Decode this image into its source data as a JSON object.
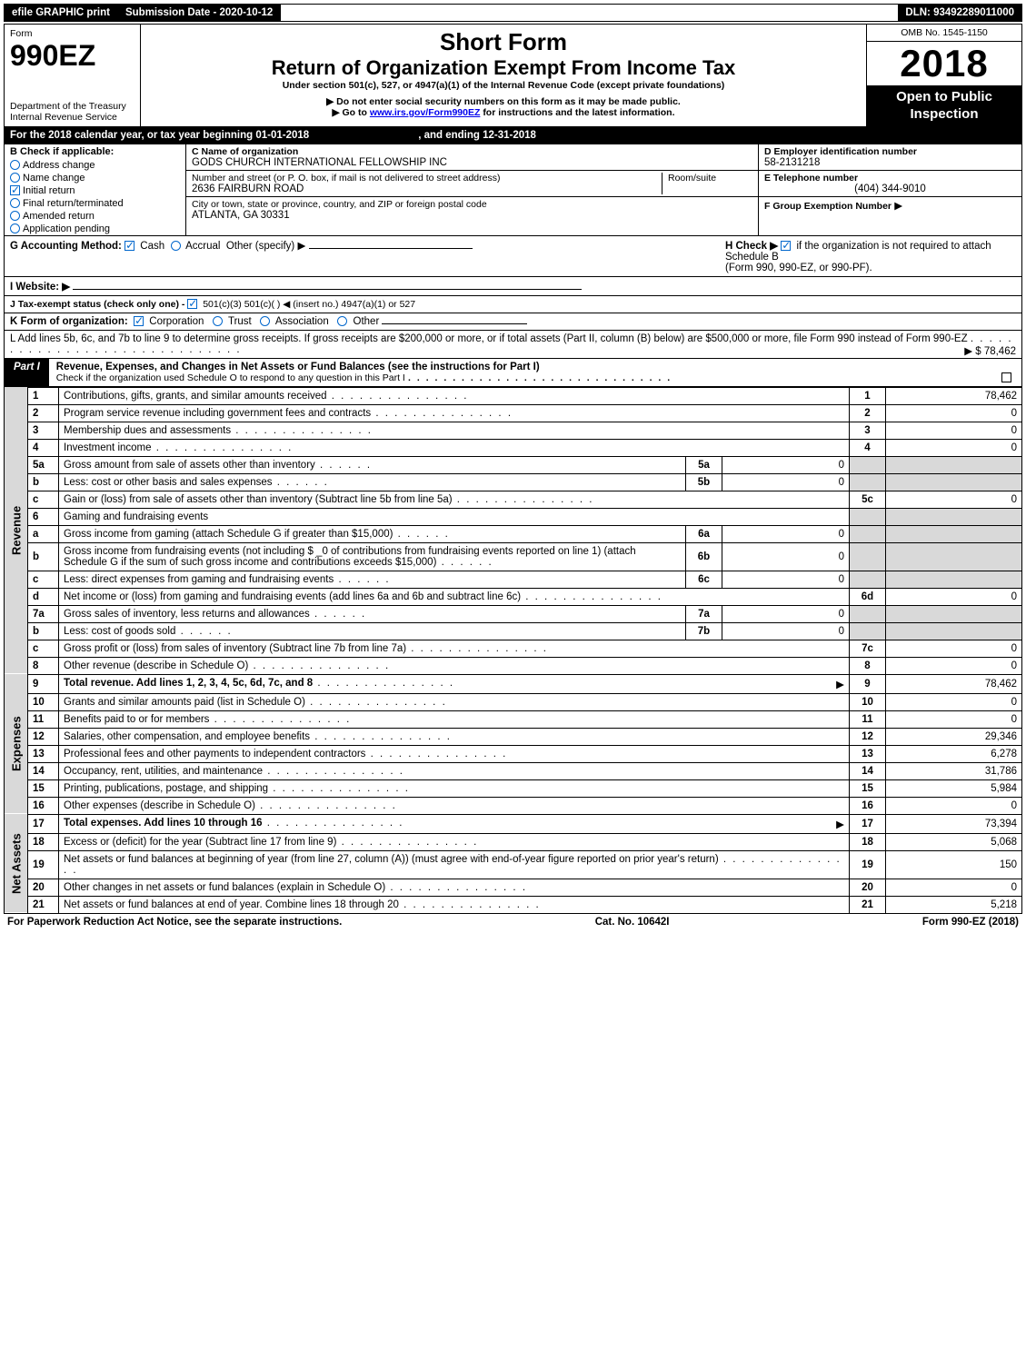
{
  "topbar": {
    "efile": "efile GRAPHIC print",
    "submission": "Submission Date - 2020-10-12",
    "dln": "DLN: 93492289011000"
  },
  "header": {
    "form_label": "Form",
    "form_code": "990EZ",
    "dept1": "Department of the Treasury",
    "dept2": "Internal Revenue Service",
    "short_form": "Short Form",
    "return_title": "Return of Organization Exempt From Income Tax",
    "under_section": "Under section 501(c), 527, or 4947(a)(1) of the Internal Revenue Code (except private foundations)",
    "no_ssn": "Do not enter social security numbers on this form as it may be made public.",
    "goto_pre": "Go to ",
    "goto_link": "www.irs.gov/Form990EZ",
    "goto_post": " for instructions and the latest information.",
    "omb": "OMB No. 1545-1150",
    "year": "2018",
    "open_public": "Open to Public Inspection"
  },
  "period": {
    "line": "For the 2018 calendar year, or tax year beginning 01-01-2018",
    "ending": ", and ending 12-31-2018"
  },
  "boxB": {
    "heading": "B  Check if applicable:",
    "rows": [
      {
        "label": "Address change",
        "type": "radio"
      },
      {
        "label": "Name change",
        "type": "radio"
      },
      {
        "label": "Initial return",
        "type": "check",
        "checked": true
      },
      {
        "label": "Final return/terminated",
        "type": "radio"
      },
      {
        "label": "Amended return",
        "type": "radio"
      },
      {
        "label": "Application pending",
        "type": "radio"
      }
    ]
  },
  "boxC": {
    "label": "C Name of organization",
    "name": "GODS CHURCH INTERNATIONAL FELLOWSHIP INC",
    "street_label": "Number and street (or P. O. box, if mail is not delivered to street address)",
    "room_label": "Room/suite",
    "street": "2636 FAIRBURN ROAD",
    "city_label": "City or town, state or province, country, and ZIP or foreign postal code",
    "city": "ATLANTA, GA  30331"
  },
  "boxDEF": {
    "d_label": "D Employer identification number",
    "ein": "58-2131218",
    "e_label": "E Telephone number",
    "phone": "(404) 344-9010",
    "f_label": "F Group Exemption Number",
    "f_arrow": "▶"
  },
  "gh": {
    "g_label": "G Accounting Method:",
    "g_cash": "Cash",
    "g_accrual": "Accrual",
    "g_other": "Other (specify) ▶",
    "h_label": "H  Check ▶",
    "h_rest": " if the organization is not required to attach Schedule B",
    "h_rest2": "(Form 990, 990-EZ, or 990-PF)."
  },
  "i": {
    "label": "I Website: ▶"
  },
  "j": {
    "label": "J Tax-exempt status (check only one) - ",
    "opts": "501(c)(3)   501(c)(  ) ◀ (insert no.)   4947(a)(1) or   527"
  },
  "k": {
    "label": "K Form of organization:",
    "opts": [
      "Corporation",
      "Trust",
      "Association",
      "Other"
    ]
  },
  "l": {
    "text": "L Add lines 5b, 6c, and 7b to line 9 to determine gross receipts. If gross receipts are $200,000 or more, or if total assets (Part II, column (B) below) are $500,000 or more, file Form 990 instead of Form 990-EZ",
    "amount": "▶ $ 78,462"
  },
  "part1": {
    "label": "Part I",
    "title": "Revenue, Expenses, and Changes in Net Assets or Fund Balances (see the instructions for Part I)",
    "check_line": "Check if the organization used Schedule O to respond to any question in this Part I",
    "check_tail": "▢"
  },
  "sideLabels": {
    "revenue": "Revenue",
    "expenses": "Expenses",
    "netassets": "Net Assets"
  },
  "lines": [
    {
      "n": "1",
      "desc": "Contributions, gifts, grants, and similar amounts received",
      "ref": "1",
      "val": "78,462"
    },
    {
      "n": "2",
      "desc": "Program service revenue including government fees and contracts",
      "ref": "2",
      "val": "0"
    },
    {
      "n": "3",
      "desc": "Membership dues and assessments",
      "ref": "3",
      "val": "0"
    },
    {
      "n": "4",
      "desc": "Investment income",
      "ref": "4",
      "val": "0"
    },
    {
      "n": "5a",
      "desc": "Gross amount from sale of assets other than inventory",
      "sub": "5a",
      "subval": "0"
    },
    {
      "n": "b",
      "desc": "Less: cost or other basis and sales expenses",
      "sub": "5b",
      "subval": "0"
    },
    {
      "n": "c",
      "desc": "Gain or (loss) from sale of assets other than inventory (Subtract line 5b from line 5a)",
      "ref": "5c",
      "val": "0"
    },
    {
      "n": "6",
      "desc": "Gaming and fundraising events",
      "header": true
    },
    {
      "n": "a",
      "desc": "Gross income from gaming (attach Schedule G if greater than $15,000)",
      "sub": "6a",
      "subval": "0"
    },
    {
      "n": "b",
      "desc": "Gross income from fundraising events (not including $ _0            of contributions from fundraising events reported on line 1) (attach Schedule G if the sum of such gross income and contributions exceeds $15,000)",
      "sub": "6b",
      "subval": "0"
    },
    {
      "n": "c",
      "desc": "Less: direct expenses from gaming and fundraising events",
      "sub": "6c",
      "subval": "0"
    },
    {
      "n": "d",
      "desc": "Net income or (loss) from gaming and fundraising events (add lines 6a and 6b and subtract line 6c)",
      "ref": "6d",
      "val": "0"
    },
    {
      "n": "7a",
      "desc": "Gross sales of inventory, less returns and allowances",
      "sub": "7a",
      "subval": "0"
    },
    {
      "n": "b",
      "desc": "Less: cost of goods sold",
      "sub": "7b",
      "subval": "0"
    },
    {
      "n": "c",
      "desc": "Gross profit or (loss) from sales of inventory (Subtract line 7b from line 7a)",
      "ref": "7c",
      "val": "0"
    },
    {
      "n": "8",
      "desc": "Other revenue (describe in Schedule O)",
      "ref": "8",
      "val": "0"
    },
    {
      "n": "9",
      "desc": "Total revenue. Add lines 1, 2, 3, 4, 5c, 6d, 7c, and 8",
      "ref": "9",
      "val": "78,462",
      "bold": true,
      "arrow": true
    },
    {
      "n": "10",
      "desc": "Grants and similar amounts paid (list in Schedule O)",
      "ref": "10",
      "val": "0"
    },
    {
      "n": "11",
      "desc": "Benefits paid to or for members",
      "ref": "11",
      "val": "0"
    },
    {
      "n": "12",
      "desc": "Salaries, other compensation, and employee benefits",
      "ref": "12",
      "val": "29,346"
    },
    {
      "n": "13",
      "desc": "Professional fees and other payments to independent contractors",
      "ref": "13",
      "val": "6,278"
    },
    {
      "n": "14",
      "desc": "Occupancy, rent, utilities, and maintenance",
      "ref": "14",
      "val": "31,786"
    },
    {
      "n": "15",
      "desc": "Printing, publications, postage, and shipping",
      "ref": "15",
      "val": "5,984"
    },
    {
      "n": "16",
      "desc": "Other expenses (describe in Schedule O)",
      "ref": "16",
      "val": "0"
    },
    {
      "n": "17",
      "desc": "Total expenses. Add lines 10 through 16",
      "ref": "17",
      "val": "73,394",
      "bold": true,
      "arrow": true
    },
    {
      "n": "18",
      "desc": "Excess or (deficit) for the year (Subtract line 17 from line 9)",
      "ref": "18",
      "val": "5,068"
    },
    {
      "n": "19",
      "desc": "Net assets or fund balances at beginning of year (from line 27, column (A)) (must agree with end-of-year figure reported on prior year's return)",
      "ref": "19",
      "val": "150"
    },
    {
      "n": "20",
      "desc": "Other changes in net assets or fund balances (explain in Schedule O)",
      "ref": "20",
      "val": "0"
    },
    {
      "n": "21",
      "desc": "Net assets or fund balances at end of year. Combine lines 18 through 20",
      "ref": "21",
      "val": "5,218"
    }
  ],
  "sections": {
    "revenue_end": 16,
    "expenses_end": 24,
    "netassets_end": 28
  },
  "footer": {
    "left": "For Paperwork Reduction Act Notice, see the separate instructions.",
    "mid": "Cat. No. 10642I",
    "right": "Form 990-EZ (2018)"
  },
  "colors": {
    "header_black": "#000000",
    "grey_fill": "#d9d9d9",
    "link_blue": "#0000ee",
    "check_blue": "#0066cc"
  }
}
